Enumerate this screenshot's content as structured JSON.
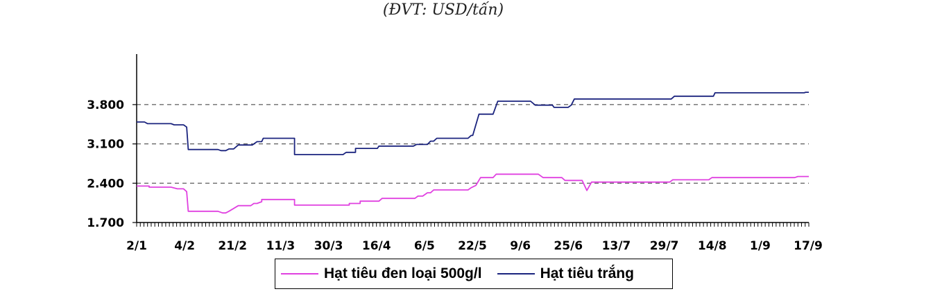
{
  "unit_label": "(ĐVT: USD/tấn)",
  "chart_data": {
    "type": "line",
    "title": "",
    "xlabel": "",
    "ylabel": "",
    "ylim": [
      1700,
      4700
    ],
    "yticks": [
      "1.700",
      "2.400",
      "3.100",
      "3.800"
    ],
    "ytick_values": [
      1700,
      2400,
      3100,
      3800
    ],
    "grid": "horizontal dashed",
    "legend_position": "bottom",
    "x_tick_labels": [
      "2/1",
      "4/2",
      "21/2",
      "11/3",
      "30/3",
      "16/4",
      "6/5",
      "22/5",
      "9/6",
      "25/6",
      "13/7",
      "29/7",
      "14/8",
      "1/9",
      "17/9"
    ],
    "series": [
      {
        "name": "Hạt tiêu đen loại 500g/l",
        "color": "#e040e0",
        "values": [
          [
            0,
            2350
          ],
          [
            8,
            2350
          ],
          [
            8,
            2330
          ],
          [
            22,
            2330
          ],
          [
            22,
            2330
          ],
          [
            26,
            2300
          ],
          [
            30,
            2300
          ],
          [
            32,
            2250
          ],
          [
            33,
            1900
          ],
          [
            52,
            1900
          ],
          [
            55,
            1870
          ],
          [
            57,
            1870
          ],
          [
            59,
            1900
          ],
          [
            62,
            1950
          ],
          [
            65,
            2000
          ],
          [
            73,
            2000
          ],
          [
            75,
            2040
          ],
          [
            77,
            2040
          ],
          [
            80,
            2070
          ],
          [
            80,
            2110
          ],
          [
            101,
            2110
          ],
          [
            101,
            2010
          ],
          [
            136,
            2010
          ],
          [
            136,
            2040
          ],
          [
            143,
            2040
          ],
          [
            143,
            2080
          ],
          [
            155,
            2080
          ],
          [
            157,
            2130
          ],
          [
            178,
            2130
          ],
          [
            180,
            2170
          ],
          [
            183,
            2170
          ],
          [
            186,
            2230
          ],
          [
            188,
            2230
          ],
          [
            190,
            2280
          ],
          [
            212,
            2280
          ],
          [
            214,
            2320
          ],
          [
            217,
            2360
          ],
          [
            220,
            2500
          ],
          [
            228,
            2500
          ],
          [
            230,
            2560
          ],
          [
            257,
            2560
          ],
          [
            260,
            2500
          ],
          [
            272,
            2500
          ],
          [
            274,
            2450
          ],
          [
            285,
            2450
          ],
          [
            288,
            2270
          ],
          [
            291,
            2420
          ],
          [
            341,
            2420
          ],
          [
            343,
            2460
          ],
          [
            366,
            2460
          ],
          [
            368,
            2500
          ],
          [
            421,
            2500
          ],
          [
            423,
            2520
          ],
          [
            430,
            2520
          ]
        ]
      },
      {
        "name": "Hạt tiêu trắng",
        "color": "#1a237e",
        "values": [
          [
            0,
            3490
          ],
          [
            5,
            3490
          ],
          [
            7,
            3460
          ],
          [
            22,
            3460
          ],
          [
            24,
            3440
          ],
          [
            30,
            3440
          ],
          [
            32,
            3400
          ],
          [
            33,
            3000
          ],
          [
            52,
            3000
          ],
          [
            54,
            2980
          ],
          [
            57,
            2980
          ],
          [
            59,
            3010
          ],
          [
            62,
            3010
          ],
          [
            65,
            3080
          ],
          [
            69,
            3080
          ],
          [
            71,
            3080
          ],
          [
            74,
            3080
          ],
          [
            77,
            3140
          ],
          [
            80,
            3140
          ],
          [
            81,
            3200
          ],
          [
            101,
            3200
          ],
          [
            101,
            2910
          ],
          [
            132,
            2910
          ],
          [
            134,
            2950
          ],
          [
            140,
            2950
          ],
          [
            140,
            3020
          ],
          [
            154,
            3020
          ],
          [
            155,
            3060
          ],
          [
            177,
            3060
          ],
          [
            179,
            3090
          ],
          [
            186,
            3090
          ],
          [
            188,
            3150
          ],
          [
            190,
            3150
          ],
          [
            192,
            3200
          ],
          [
            212,
            3200
          ],
          [
            214,
            3250
          ],
          [
            215,
            3250
          ],
          [
            219,
            3630
          ],
          [
            228,
            3630
          ],
          [
            231,
            3860
          ],
          [
            252,
            3860
          ],
          [
            255,
            3790
          ],
          [
            266,
            3790
          ],
          [
            267,
            3750
          ],
          [
            276,
            3750
          ],
          [
            278,
            3790
          ],
          [
            280,
            3900
          ],
          [
            342,
            3900
          ],
          [
            344,
            3950
          ],
          [
            369,
            3950
          ],
          [
            370,
            4010
          ],
          [
            427,
            4010
          ],
          [
            428,
            4020
          ],
          [
            430,
            4020
          ]
        ]
      }
    ]
  }
}
